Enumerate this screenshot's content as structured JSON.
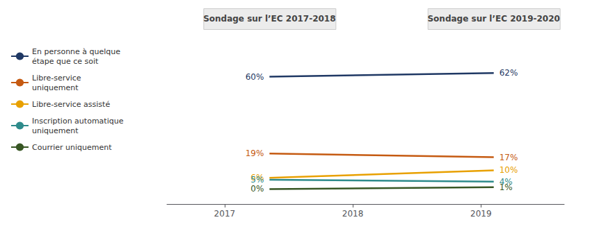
{
  "chart_data": {
    "type": "line",
    "annotations": [
      "Sondage sur l’EC 2017-2018",
      "Sondage sur l’EC 2019-2020"
    ],
    "x": [
      2017.35,
      2019.1
    ],
    "series": [
      {
        "name": "En personne à quelque\nétape que ce soit",
        "color": "#1f3864",
        "values": [
          60,
          62
        ],
        "value_labels": [
          "60%",
          "62%"
        ]
      },
      {
        "name": "Libre-service\nuniquement",
        "color": "#c55a11",
        "values": [
          19,
          17
        ],
        "value_labels": [
          "19%",
          "17%"
        ]
      },
      {
        "name": "Libre-service assisté",
        "color": "#e8a000",
        "values": [
          6,
          10
        ],
        "value_labels": [
          "6%",
          "10%"
        ]
      },
      {
        "name": "Inscription automatique\nuniquement",
        "color": "#2e8b8b",
        "values": [
          5,
          4
        ],
        "value_labels": [
          "5%",
          "4%"
        ]
      },
      {
        "name": "Courrier uniquement",
        "color": "#375623",
        "values": [
          0,
          1
        ],
        "value_labels": [
          "0%",
          "1%"
        ]
      }
    ],
    "xlim": [
      2016.55,
      2019.65
    ],
    "xticks": [
      2017,
      2018,
      2019
    ],
    "ylim": [
      -8,
      78
    ],
    "grid": false,
    "data_labels": true,
    "tick_labels": "x"
  }
}
